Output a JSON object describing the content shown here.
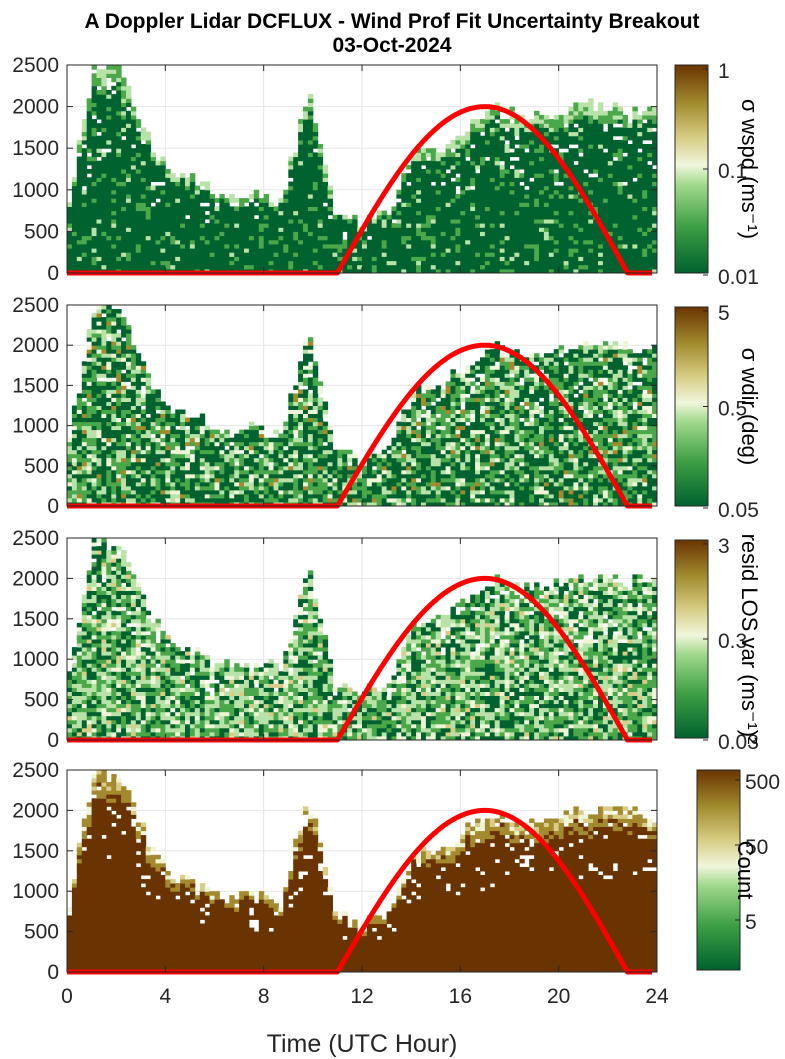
{
  "title_line1": "A Doppler Lidar DCFLUX - Wind Prof Fit Uncertainty Breakout",
  "title_line2": "03-Oct-2024",
  "xlabel": "Time (UTC Hour)",
  "colors": {
    "dark_green": "#00622e",
    "mid_green": "#4aa84a",
    "light_green": "#b8e2a8",
    "pale": "#eef5d6",
    "tan": "#d8cc86",
    "olive": "#a48a2e",
    "brown": "#6a3402",
    "curve": "#ff0000"
  },
  "chart_data": [
    {
      "type": "heatmap",
      "panel": 1,
      "x_ticks": [
        "0",
        "4",
        "8",
        "12",
        "16",
        "20",
        "24"
      ],
      "xlim": [
        0,
        24
      ],
      "y_ticks": [
        "0",
        "500",
        "1000",
        "1500",
        "2000",
        "2500"
      ],
      "ylim": [
        0,
        2500
      ],
      "colorbar_label": "σ wspd (ms⁻¹)",
      "colorbar_ticks": [
        "1",
        "0.1",
        "0.01"
      ],
      "colorbar_scale": "log",
      "curve": {
        "start_hour": 11.0,
        "peak_hour": 17.0,
        "end_hour": 22.8,
        "peak_value": 2000
      },
      "profile_top_m": [
        700,
        2450,
        2450,
        1600,
        1150,
        1050,
        900,
        950,
        850,
        2150,
        700,
        550,
        700,
        1450,
        1500,
        1750,
        1950,
        1850,
        1900,
        1950,
        2000,
        1950,
        1900
      ],
      "character": "mostly-dark"
    },
    {
      "type": "heatmap",
      "panel": 2,
      "x_ticks": [
        "0",
        "4",
        "8",
        "12",
        "16",
        "20",
        "24"
      ],
      "xlim": [
        0,
        24
      ],
      "y_ticks": [
        "0",
        "500",
        "1000",
        "1500",
        "2000",
        "2500"
      ],
      "ylim": [
        0,
        2500
      ],
      "colorbar_label": "σ wdir (deg)",
      "colorbar_ticks": [
        "5",
        "0.5",
        "0.05"
      ],
      "colorbar_scale": "log",
      "curve": {
        "start_hour": 11.0,
        "peak_hour": 17.0,
        "end_hour": 22.8,
        "peak_value": 2000
      },
      "profile_top_m": [
        700,
        2450,
        2450,
        1600,
        1150,
        1050,
        900,
        950,
        850,
        2150,
        700,
        550,
        700,
        1450,
        1500,
        1750,
        1950,
        1850,
        1900,
        1950,
        2000,
        1950,
        1900
      ],
      "character": "mixed"
    },
    {
      "type": "heatmap",
      "panel": 3,
      "x_ticks": [
        "0",
        "4",
        "8",
        "12",
        "16",
        "20",
        "24"
      ],
      "xlim": [
        0,
        24
      ],
      "y_ticks": [
        "0",
        "500",
        "1000",
        "1500",
        "2000",
        "2500"
      ],
      "ylim": [
        0,
        2500
      ],
      "colorbar_label": "resid LOS var (ms⁻¹)²",
      "colorbar_ticks": [
        "3",
        "0.3",
        "0.03"
      ],
      "colorbar_scale": "log",
      "curve": {
        "start_hour": 11.0,
        "peak_hour": 17.0,
        "end_hour": 22.8,
        "peak_value": 2000
      },
      "profile_top_m": [
        700,
        2450,
        2450,
        1600,
        1150,
        1050,
        900,
        950,
        850,
        2150,
        700,
        550,
        700,
        1450,
        1500,
        1750,
        1950,
        1850,
        1900,
        1950,
        2000,
        1950,
        1900
      ],
      "character": "light"
    },
    {
      "type": "heatmap",
      "panel": 4,
      "x_ticks": [
        "0",
        "4",
        "8",
        "12",
        "16",
        "20",
        "24"
      ],
      "xlim": [
        0,
        24
      ],
      "y_ticks": [
        "0",
        "500",
        "1000",
        "1500",
        "2000",
        "2500"
      ],
      "ylim": [
        0,
        2500
      ],
      "colorbar_label": "Count",
      "colorbar_ticks": [
        "500",
        "50",
        "5"
      ],
      "colorbar_scale": "log",
      "curve": {
        "start_hour": 11.0,
        "peak_hour": 17.0,
        "end_hour": 22.8,
        "peak_value": 2000
      },
      "profile_top_m": [
        700,
        2450,
        2450,
        1600,
        1150,
        1050,
        900,
        950,
        850,
        2150,
        700,
        550,
        700,
        1450,
        1500,
        1750,
        1950,
        1850,
        1900,
        1950,
        2000,
        1950,
        1900
      ],
      "character": "brown"
    }
  ]
}
